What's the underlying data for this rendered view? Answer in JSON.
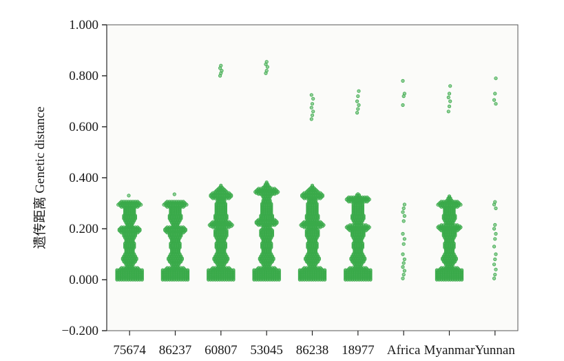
{
  "chart_data": {
    "type": "scatter",
    "title": "",
    "xlabel": "",
    "ylabel": "遗传距离 Genetic distance",
    "ylim": [
      -0.2,
      1.0
    ],
    "yticks": [
      "1.000",
      "0.800",
      "0.600",
      "0.400",
      "0.200",
      "0.000",
      "−0.200"
    ],
    "ytick_values": [
      1.0,
      0.8,
      0.6,
      0.4,
      0.2,
      0.0,
      -0.2
    ],
    "categories": [
      "75674",
      "86237",
      "60807",
      "53045",
      "86238",
      "18977",
      "Africa",
      "Myanmar",
      "Yunnan"
    ],
    "colors": {
      "points": "#3aaa4a",
      "plot_bg": "#fbfbf9",
      "axis": "#222222"
    },
    "series": [
      {
        "category": "75674",
        "dense_ranges": [
          [
            0.0,
            0.31
          ]
        ],
        "wide_bands": [
          0.005,
          0.02,
          0.035,
          0.195,
          0.295
        ],
        "outliers": [
          0.33
        ]
      },
      {
        "category": "86237",
        "dense_ranges": [
          [
            0.0,
            0.31
          ]
        ],
        "wide_bands": [
          0.005,
          0.02,
          0.035,
          0.195,
          0.295
        ],
        "outliers": [
          0.335
        ]
      },
      {
        "category": "60807",
        "dense_ranges": [
          [
            0.0,
            0.37
          ]
        ],
        "wide_bands": [
          0.005,
          0.02,
          0.035,
          0.215,
          0.33
        ],
        "outliers": [
          0.8,
          0.81,
          0.82,
          0.83,
          0.84
        ]
      },
      {
        "category": "53045",
        "dense_ranges": [
          [
            0.0,
            0.385
          ]
        ],
        "wide_bands": [
          0.005,
          0.02,
          0.035,
          0.225,
          0.345
        ],
        "outliers": [
          0.81,
          0.82,
          0.835,
          0.845,
          0.855
        ]
      },
      {
        "category": "86238",
        "dense_ranges": [
          [
            0.0,
            0.37
          ]
        ],
        "wide_bands": [
          0.005,
          0.02,
          0.035,
          0.215,
          0.33
        ],
        "outliers": [
          0.63,
          0.645,
          0.66,
          0.675,
          0.69,
          0.71,
          0.725
        ]
      },
      {
        "category": "18977",
        "dense_ranges": [
          [
            0.0,
            0.34
          ]
        ],
        "wide_bands": [
          0.005,
          0.02,
          0.035,
          0.205,
          0.315
        ],
        "outliers": [
          0.655,
          0.67,
          0.685,
          0.7,
          0.72,
          0.74
        ]
      },
      {
        "category": "Africa",
        "dense_ranges": [],
        "wide_bands": [],
        "outliers": [
          0.005,
          0.02,
          0.035,
          0.05,
          0.065,
          0.08,
          0.1,
          0.14,
          0.16,
          0.18,
          0.23,
          0.25,
          0.265,
          0.28,
          0.295,
          0.685,
          0.72,
          0.73,
          0.78
        ]
      },
      {
        "category": "Myanmar",
        "dense_ranges": [
          [
            0.0,
            0.33
          ]
        ],
        "wide_bands": [
          0.005,
          0.02,
          0.035,
          0.205,
          0.295
        ],
        "outliers": [
          0.66,
          0.68,
          0.7,
          0.715,
          0.73,
          0.76
        ]
      },
      {
        "category": "Yunnan",
        "dense_ranges": [],
        "wide_bands": [],
        "outliers": [
          0.005,
          0.02,
          0.04,
          0.06,
          0.08,
          0.1,
          0.13,
          0.16,
          0.18,
          0.2,
          0.215,
          0.28,
          0.295,
          0.305,
          0.69,
          0.705,
          0.73,
          0.79
        ]
      }
    ]
  }
}
